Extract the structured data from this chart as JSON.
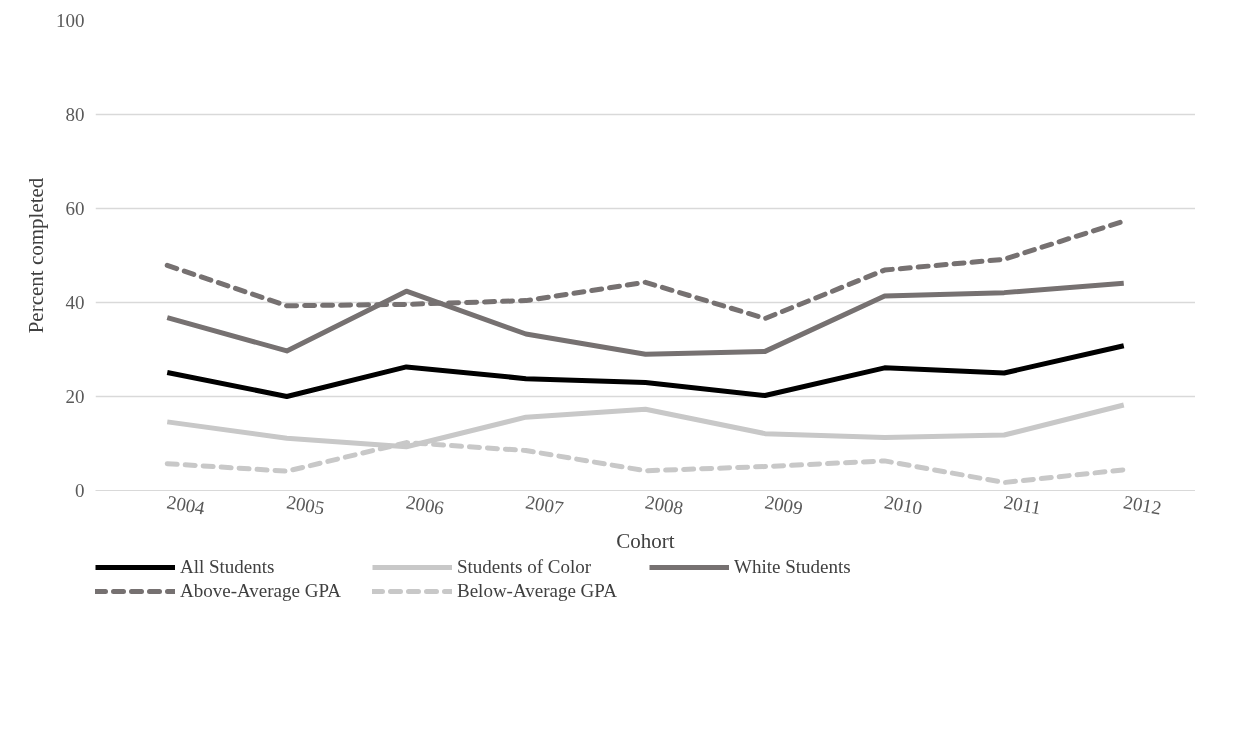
{
  "chart_data": {
    "type": "line",
    "xlabel": "Cohort",
    "ylabel": "Percent completed",
    "categories": [
      "2004",
      "2005",
      "2006",
      "2007",
      "2008",
      "2009",
      "2010",
      "2011",
      "2012"
    ],
    "series": [
      {
        "name": "All Students",
        "color": "#000000",
        "line_style": "solid",
        "values": [
          25.1,
          20.0,
          26.3,
          23.8,
          23.0,
          20.2,
          26.1,
          25.0,
          30.8
        ]
      },
      {
        "name": "Students of Color",
        "color": "#c8c8c8",
        "line_style": "solid",
        "values": [
          14.6,
          11.1,
          9.3,
          15.6,
          17.3,
          12.1,
          11.3,
          11.8,
          18.2
        ]
      },
      {
        "name": "White Students",
        "color": "#767171",
        "line_style": "solid",
        "values": [
          36.8,
          29.7,
          42.4,
          33.3,
          29.0,
          29.6,
          41.4,
          42.1,
          44.1
        ]
      },
      {
        "name": "Above-Average GPA",
        "color": "#767171",
        "line_style": "dashed",
        "values": [
          47.9,
          39.3,
          39.6,
          40.4,
          44.3,
          36.6,
          46.9,
          49.2,
          57.3
        ]
      },
      {
        "name": "Below-Average GPA",
        "color": "#c8c8c8",
        "line_style": "dashed",
        "values": [
          5.7,
          4.1,
          10.2,
          8.5,
          4.2,
          5.1,
          6.3,
          1.7,
          4.4
        ]
      }
    ],
    "ylim": [
      0,
      100
    ],
    "yticks": [
      0,
      20,
      40,
      60,
      80,
      100
    ],
    "grid": "y",
    "legend": "bottom",
    "marker": "none"
  }
}
